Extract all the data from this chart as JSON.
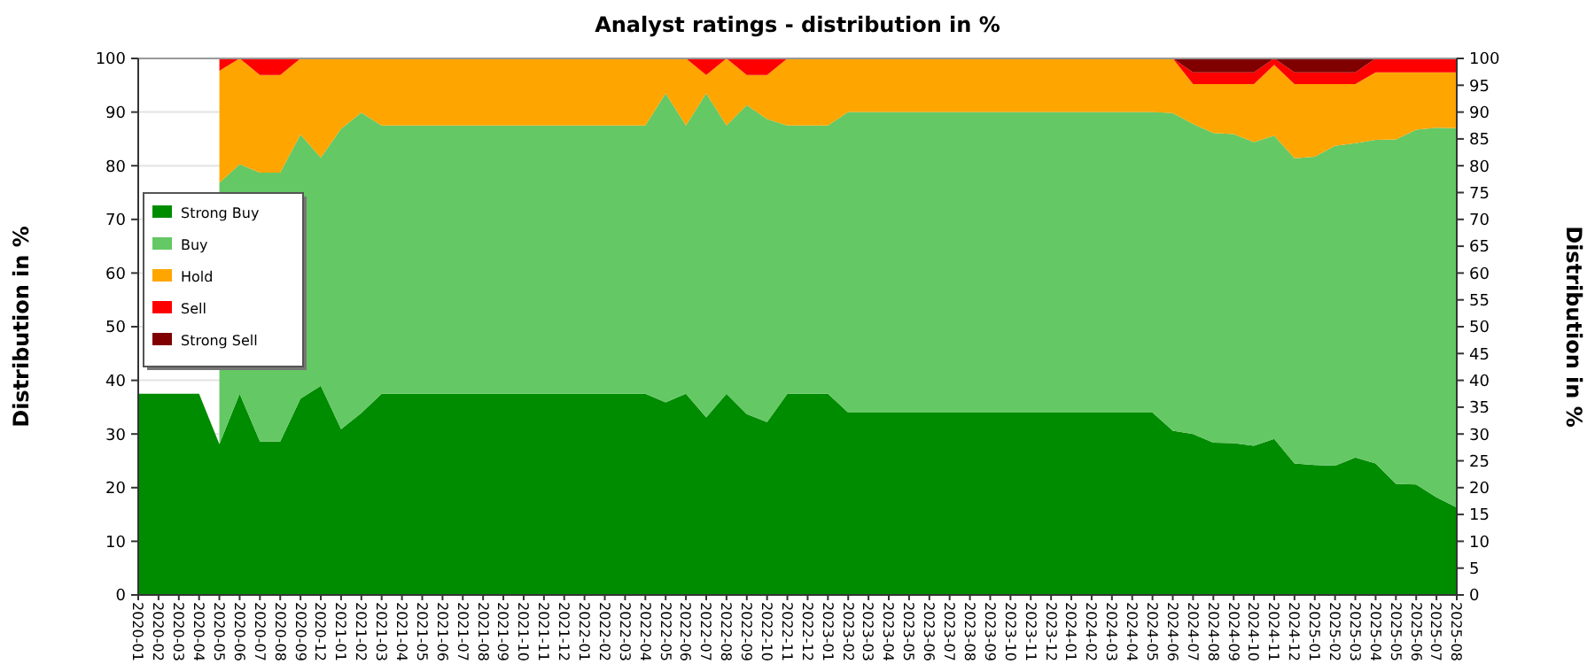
{
  "chart_data": {
    "type": "area",
    "stacked": true,
    "title": "Analyst ratings - distribution in %",
    "ylabel": "Distribution in %",
    "y2label": "Distribution in %",
    "categories": [
      "2020-01",
      "2020-02",
      "2020-03",
      "2020-04",
      "2020-05",
      "2020-06",
      "2020-07",
      "2020-08",
      "2020-09",
      "2020-12",
      "2021-01",
      "2021-02",
      "2021-03",
      "2021-04",
      "2021-05",
      "2021-06",
      "2021-07",
      "2021-08",
      "2021-09",
      "2021-10",
      "2021-11",
      "2021-12",
      "2022-01",
      "2022-02",
      "2022-03",
      "2022-04",
      "2022-05",
      "2022-06",
      "2022-07",
      "2022-08",
      "2022-09",
      "2022-10",
      "2022-11",
      "2022-12",
      "2023-01",
      "2023-02",
      "2023-03",
      "2023-04",
      "2023-05",
      "2023-06",
      "2023-07",
      "2023-08",
      "2023-09",
      "2023-10",
      "2023-11",
      "2023-12",
      "2024-01",
      "2024-02",
      "2024-03",
      "2024-04",
      "2024-05",
      "2024-06",
      "2024-07",
      "2024-08",
      "2024-09",
      "2024-10",
      "2024-11",
      "2024-12",
      "2025-01",
      "2025-02",
      "2025-03",
      "2025-04",
      "2025-05",
      "2025-06",
      "2025-07",
      "2025-08"
    ],
    "series": [
      {
        "name": "Strong Buy",
        "color": "#008c00",
        "values": [
          37.5,
          37.5,
          37.5,
          37.5,
          28.1,
          37.5,
          28.6,
          28.6,
          36.6,
          39,
          30.9,
          33.9,
          37.5,
          37.5,
          37.5,
          37.5,
          37.5,
          37.5,
          37.5,
          37.5,
          37.5,
          37.5,
          37.5,
          37.5,
          37.5,
          37.5,
          35.9,
          37.5,
          33.1,
          37.5,
          33.7,
          32.2,
          37.5,
          37.5,
          37.5,
          34,
          34,
          34,
          34,
          34,
          34,
          34,
          34,
          34,
          34,
          34,
          34,
          34,
          34,
          34,
          34,
          30.6,
          30,
          28.4,
          28.3,
          27.8,
          29.1,
          24.5,
          24.2,
          24.1,
          25.6,
          24.5,
          20.7,
          20.6,
          18.2,
          16.3
        ]
      },
      {
        "name": "Buy",
        "color": "#64c864",
        "values": [
          null,
          null,
          null,
          null,
          48.7,
          42.8,
          50.1,
          50.1,
          49.2,
          42.5,
          56,
          56,
          50,
          50,
          50,
          50,
          50,
          50,
          50,
          50,
          50,
          50,
          50,
          50,
          50,
          50,
          57.6,
          50,
          60.4,
          50,
          57.6,
          56.5,
          50,
          50,
          50,
          56,
          56,
          56,
          56,
          56,
          56,
          56,
          56,
          56,
          56,
          56,
          56,
          56,
          56,
          56,
          56,
          59.2,
          57.8,
          57.7,
          57.6,
          56.6,
          56.5,
          56.9,
          57.5,
          59.6,
          58.6,
          60.3,
          64.2,
          66.1,
          68.9,
          70.7
        ]
      },
      {
        "name": "Hold",
        "color": "#ffa500",
        "values": [
          null,
          null,
          null,
          null,
          20.9,
          19.7,
          18.2,
          18.2,
          14.2,
          18.5,
          13.1,
          10.1,
          12.5,
          12.5,
          12.5,
          12.5,
          12.5,
          12.5,
          12.5,
          12.5,
          12.5,
          12.5,
          12.5,
          12.5,
          12.5,
          12.5,
          6.5,
          12.5,
          3.4,
          12.5,
          5.6,
          8.2,
          12.5,
          12.5,
          12.5,
          10,
          10,
          10,
          10,
          10,
          10,
          10,
          10,
          10,
          10,
          10,
          10,
          10,
          10,
          10,
          10,
          10.2,
          7.4,
          9.1,
          9.3,
          10.8,
          13.2,
          13.8,
          13.5,
          11.5,
          11,
          12.6,
          12.5,
          10.7,
          10.3,
          10.4
        ]
      },
      {
        "name": "Sell",
        "color": "#ff0000",
        "values": [
          null,
          null,
          null,
          null,
          2.3,
          0,
          3.1,
          3.1,
          0,
          0,
          0,
          0,
          0,
          0,
          0,
          0,
          0,
          0,
          0,
          0,
          0,
          0,
          0,
          0,
          0,
          0,
          0,
          0,
          3.1,
          0,
          3.1,
          3.1,
          0,
          0,
          0,
          0,
          0,
          0,
          0,
          0,
          0,
          0,
          0,
          0,
          0,
          0,
          0,
          0,
          0,
          0,
          0,
          0,
          2.2,
          2.2,
          2.2,
          2.2,
          1.2,
          2.2,
          2.2,
          2.2,
          2.2,
          2.6,
          2.6,
          2.6,
          2.6,
          2.6
        ]
      },
      {
        "name": "Strong Sell",
        "color": "#800000",
        "values": [
          null,
          null,
          null,
          null,
          0,
          0,
          0,
          0,
          0,
          0,
          0,
          0,
          0,
          0,
          0,
          0,
          0,
          0,
          0,
          0,
          0,
          0,
          0,
          0,
          0,
          0,
          0,
          0,
          0,
          0,
          0,
          0,
          0,
          0,
          0,
          0,
          0,
          0,
          0,
          0,
          0,
          0,
          0,
          0,
          0,
          0,
          0,
          0,
          0,
          0,
          0,
          0,
          2.6,
          2.6,
          2.6,
          2.6,
          0,
          2.6,
          2.6,
          2.6,
          2.6,
          0,
          0,
          0,
          0,
          0
        ]
      }
    ],
    "ylim": [
      0,
      100
    ],
    "yticks": [
      0,
      10,
      20,
      30,
      40,
      50,
      60,
      70,
      80,
      90,
      100
    ],
    "y2lim": [
      0,
      100
    ],
    "y2ticks": [
      0,
      5,
      10,
      15,
      20,
      25,
      30,
      35,
      40,
      45,
      50,
      55,
      60,
      65,
      70,
      75,
      80,
      85,
      90,
      95,
      100
    ],
    "grid": "y",
    "legend": "top left"
  }
}
